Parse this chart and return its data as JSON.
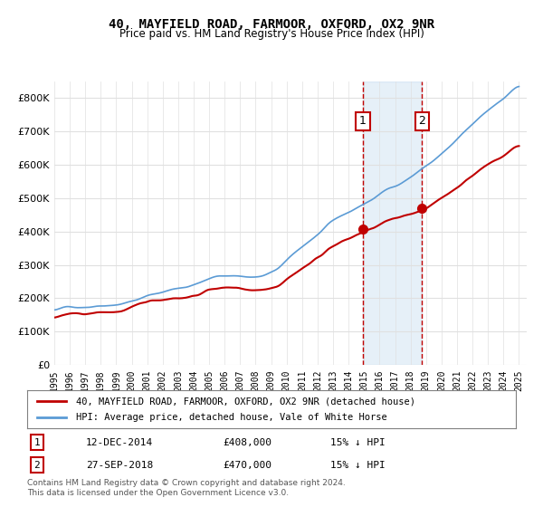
{
  "title": "40, MAYFIELD ROAD, FARMOOR, OXFORD, OX2 9NR",
  "subtitle": "Price paid vs. HM Land Registry's House Price Index (HPI)",
  "legend_line1": "40, MAYFIELD ROAD, FARMOOR, OXFORD, OX2 9NR (detached house)",
  "legend_line2": "HPI: Average price, detached house, Vale of White Horse",
  "annotation1_label": "1",
  "annotation1_date": "12-DEC-2014",
  "annotation1_price": "£408,000",
  "annotation1_hpi": "15% ↓ HPI",
  "annotation2_label": "2",
  "annotation2_date": "27-SEP-2018",
  "annotation2_price": "£470,000",
  "annotation2_hpi": "15% ↓ HPI",
  "footer": "Contains HM Land Registry data © Crown copyright and database right 2024.\nThis data is licensed under the Open Government Licence v3.0.",
  "hpi_color": "#5b9bd5",
  "price_color": "#c00000",
  "marker1_x": 2014.92,
  "marker1_y": 408000,
  "marker2_x": 2018.75,
  "marker2_y": 470000,
  "vline1_x": 2014.92,
  "vline2_x": 2018.75,
  "shade_xmin": 2014.92,
  "shade_xmax": 2018.75,
  "ylim": [
    0,
    850000
  ],
  "xlim": [
    1995,
    2025.5
  ],
  "yticks": [
    0,
    100000,
    200000,
    300000,
    400000,
    500000,
    600000,
    700000,
    800000
  ],
  "xticks": [
    1995,
    1996,
    1997,
    1998,
    1999,
    2000,
    2001,
    2002,
    2003,
    2004,
    2005,
    2006,
    2007,
    2008,
    2009,
    2010,
    2011,
    2012,
    2013,
    2014,
    2015,
    2016,
    2017,
    2018,
    2019,
    2020,
    2021,
    2022,
    2023,
    2024,
    2025
  ],
  "background_color": "#ffffff",
  "grid_color": "#e0e0e0"
}
